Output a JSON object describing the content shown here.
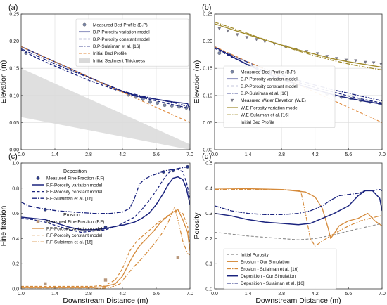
{
  "chart_data": [
    {
      "panel": "(a)",
      "type": "line",
      "ylabel": "Elevation (m)",
      "xlim": [
        0,
        7.0
      ],
      "ylim": [
        0,
        0.25
      ],
      "xticks": [
        0.0,
        1.4,
        2.8,
        4.2,
        5.6,
        7.0
      ],
      "yticks": [
        0.0,
        0.05,
        0.1,
        0.15,
        0.2,
        0.25
      ],
      "grid": true,
      "legend_position": "top-right",
      "legend_groups": [
        {
          "title": "",
          "items": [
            0,
            1,
            2,
            3,
            4,
            5
          ]
        }
      ],
      "series": [
        {
          "name": "Measured Bed Profile (B.P)",
          "style": "marker-circle",
          "color": "#7a86a8",
          "x": [
            0.2,
            4.45,
            4.75,
            5.05,
            5.35,
            5.65,
            5.95,
            6.25,
            6.55,
            6.85
          ],
          "y": [
            0.178,
            0.101,
            0.097,
            0.093,
            0.088,
            0.086,
            0.082,
            0.081,
            0.079,
            0.077
          ]
        },
        {
          "name": "B.P-Porosity variation model",
          "style": "solid",
          "color": "#1a237e",
          "width": 1.5,
          "x": [
            0,
            0.7,
            1.4,
            2.1,
            2.8,
            3.5,
            4.2,
            4.9,
            5.6,
            6.3,
            6.9,
            7.0
          ],
          "y": [
            0.19,
            0.176,
            0.162,
            0.148,
            0.134,
            0.12,
            0.107,
            0.098,
            0.093,
            0.088,
            0.085,
            0.072
          ]
        },
        {
          "name": "B.P-Porosity constant model",
          "style": "dashed",
          "color": "#1a237e",
          "width": 1.3,
          "x": [
            0,
            0.7,
            1.4,
            2.1,
            2.8,
            3.5,
            4.2,
            4.9,
            5.6,
            6.3,
            7.0
          ],
          "y": [
            0.184,
            0.168,
            0.154,
            0.141,
            0.128,
            0.117,
            0.106,
            0.097,
            0.09,
            0.083,
            0.076
          ]
        },
        {
          "name": "B.P-Sulaiman et al. [16]",
          "style": "dashdot",
          "color": "#1a237e",
          "width": 1.3,
          "x": [
            0,
            0.7,
            1.4,
            2.1,
            2.8,
            3.5,
            4.2,
            4.9,
            5.6,
            6.3,
            7.0
          ],
          "y": [
            0.186,
            0.172,
            0.158,
            0.145,
            0.133,
            0.121,
            0.108,
            0.1,
            0.093,
            0.087,
            0.079
          ]
        },
        {
          "name": "Initial Bed Profile",
          "style": "dashed",
          "color": "#e08a3c",
          "width": 1.1,
          "x": [
            0,
            7.0
          ],
          "y": [
            0.19,
            0.05
          ]
        },
        {
          "name": "Initial Sediment Thickness",
          "style": "band",
          "color": "#d9d9d9",
          "x": [
            0,
            7.0
          ],
          "y_upper": [
            0.15,
            0.01
          ],
          "y_lower": [
            0.06,
            0.0
          ]
        }
      ]
    },
    {
      "panel": "(b)",
      "type": "line",
      "ylabel": "Elevation (m)",
      "xlim": [
        0,
        7.0
      ],
      "ylim": [
        0,
        0.25
      ],
      "xticks": [
        0.0,
        1.4,
        2.8,
        4.2,
        5.6,
        7.0
      ],
      "yticks": [
        0.0,
        0.05,
        0.1,
        0.15,
        0.2,
        0.25
      ],
      "grid": true,
      "legend_position": "bottom-left",
      "legend_groups": [
        {
          "title": "",
          "items": [
            0,
            1,
            2,
            3,
            4,
            5,
            6,
            7
          ]
        }
      ],
      "series": [
        {
          "name": "Measured Bed Profile (B.P)",
          "style": "marker-circle",
          "color": "#7a86a8",
          "x": [
            0.2,
            0.6,
            4.7,
            5.0,
            5.3,
            5.7,
            6.1,
            6.5,
            6.9
          ],
          "y": [
            0.178,
            0.176,
            0.103,
            0.1,
            0.097,
            0.094,
            0.091,
            0.088,
            0.085
          ]
        },
        {
          "name": "B.P-Porosity variation model",
          "style": "solid",
          "color": "#1a237e",
          "width": 1.5,
          "x": [
            0,
            0.7,
            1.4,
            2.1,
            2.8,
            3.5,
            4.2,
            4.9,
            5.6,
            6.3,
            7.0
          ],
          "y": [
            0.19,
            0.172,
            0.156,
            0.142,
            0.13,
            0.12,
            0.111,
            0.102,
            0.095,
            0.089,
            0.084
          ]
        },
        {
          "name": "B.P-Porosity constant model",
          "style": "dashed",
          "color": "#1a237e",
          "width": 1.3,
          "x": [
            0,
            0.7,
            1.4,
            2.1,
            2.8,
            3.5,
            4.2,
            4.9,
            5.6,
            6.3,
            7.0
          ],
          "y": [
            0.187,
            0.171,
            0.157,
            0.145,
            0.134,
            0.124,
            0.115,
            0.107,
            0.099,
            0.092,
            0.086
          ]
        },
        {
          "name": "B.P-Sulaiman et al. [16]",
          "style": "dashdot",
          "color": "#1a237e",
          "width": 1.3,
          "x": [
            0,
            0.7,
            1.4,
            2.1,
            2.8,
            3.5,
            4.2,
            4.9,
            5.6,
            6.3,
            7.0
          ],
          "y": [
            0.189,
            0.174,
            0.161,
            0.149,
            0.138,
            0.128,
            0.119,
            0.111,
            0.104,
            0.097,
            0.09
          ]
        },
        {
          "name": "Measured Water Elevation (W.E)",
          "style": "marker-triangle",
          "color": "#7a7a88",
          "x": [
            0.2,
            0.55,
            0.95,
            1.35,
            1.75,
            2.1,
            2.5,
            2.95,
            3.4,
            3.85,
            4.3,
            4.7,
            5.1,
            5.5,
            5.9,
            6.3,
            6.65,
            6.95
          ],
          "y": [
            0.223,
            0.219,
            0.212,
            0.207,
            0.203,
            0.199,
            0.195,
            0.19,
            0.185,
            0.181,
            0.177,
            0.172,
            0.168,
            0.165,
            0.164,
            0.161,
            0.16,
            0.158
          ]
        },
        {
          "name": "W.E-Porosity variation model",
          "style": "solid",
          "color": "#a08a2a",
          "width": 1.4,
          "x": [
            0,
            0.7,
            1.4,
            2.1,
            2.8,
            3.5,
            4.2,
            4.9,
            5.6,
            6.3,
            7.0
          ],
          "y": [
            0.232,
            0.222,
            0.212,
            0.202,
            0.193,
            0.184,
            0.176,
            0.168,
            0.162,
            0.157,
            0.152
          ]
        },
        {
          "name": "W.E-Sulaiman et al. [16]",
          "style": "dashdot",
          "color": "#a08a2a",
          "width": 1.3,
          "x": [
            0,
            0.7,
            1.4,
            2.1,
            2.8,
            3.5,
            4.2,
            4.9,
            5.6,
            6.3,
            7.0
          ],
          "y": [
            0.235,
            0.225,
            0.214,
            0.203,
            0.192,
            0.182,
            0.173,
            0.165,
            0.158,
            0.152,
            0.147
          ]
        },
        {
          "name": "Initial Bed Profile",
          "style": "dashed",
          "color": "#e08a3c",
          "width": 1.1,
          "x": [
            0,
            7.0
          ],
          "y": [
            0.19,
            0.05
          ]
        }
      ]
    },
    {
      "panel": "(c)",
      "type": "line",
      "xlabel": "Downstream Distance (m)",
      "ylabel": "Fine fraction",
      "xlim": [
        0,
        7.0
      ],
      "ylim": [
        0,
        1.0
      ],
      "xticks": [
        0.0,
        1.4,
        2.8,
        4.2,
        5.6,
        7.0
      ],
      "yticks": [
        0.0,
        0.2,
        0.4,
        0.6,
        0.8,
        1.0
      ],
      "grid": false,
      "legend_position": "left",
      "legend_groups": [
        {
          "title": "Deposition",
          "items": [
            0,
            1,
            2,
            3
          ]
        },
        {
          "title": "Erosion",
          "items": [
            4,
            5,
            6,
            7
          ]
        }
      ],
      "series": [
        {
          "name": "Measured Fine Fraction (F.F)",
          "style": "marker-circle",
          "color": "#2a3a8a",
          "x": [
            1.0,
            3.5,
            5.9,
            6.3,
            6.9
          ],
          "y": [
            0.63,
            0.49,
            0.93,
            0.94,
            0.97
          ]
        },
        {
          "name": "F.F-Porosity variation model",
          "style": "solid",
          "color": "#1a237e",
          "width": 1.5,
          "x": [
            0,
            0.5,
            1.0,
            1.5,
            2.0,
            2.5,
            3.0,
            3.5,
            4.0,
            4.3,
            4.7,
            5.0,
            5.3,
            5.6,
            5.9,
            6.1,
            6.3,
            6.5,
            6.7,
            6.85,
            7.0
          ],
          "y": [
            0.57,
            0.56,
            0.55,
            0.52,
            0.49,
            0.47,
            0.47,
            0.48,
            0.5,
            0.51,
            0.53,
            0.56,
            0.6,
            0.67,
            0.76,
            0.83,
            0.88,
            0.89,
            0.87,
            0.8,
            0.67
          ]
        },
        {
          "name": "F.F-Porosity constant model",
          "style": "dashed",
          "color": "#1a237e",
          "width": 1.3,
          "x": [
            0,
            0.5,
            1.0,
            1.5,
            2.0,
            2.5,
            3.0,
            3.5,
            4.0,
            4.3,
            4.7,
            5.0,
            5.3,
            5.6,
            5.9,
            6.1,
            6.3,
            6.5,
            6.7,
            6.85,
            7.0
          ],
          "y": [
            0.56,
            0.55,
            0.53,
            0.5,
            0.47,
            0.45,
            0.46,
            0.47,
            0.5,
            0.53,
            0.57,
            0.63,
            0.7,
            0.78,
            0.87,
            0.92,
            0.95,
            0.95,
            0.93,
            0.85,
            0.72
          ]
        },
        {
          "name": "F.F-Sulaiman et al. [16]",
          "style": "dashdot",
          "color": "#1a237e",
          "width": 1.3,
          "x": [
            0,
            0.3,
            0.8,
            1.5,
            2.2,
            3.0,
            3.7,
            4.2,
            4.5,
            4.7,
            4.9,
            5.1,
            5.4,
            5.7,
            6.0,
            6.3,
            6.6,
            6.9,
            7.0
          ],
          "y": [
            0.69,
            0.66,
            0.64,
            0.62,
            0.61,
            0.6,
            0.6,
            0.61,
            0.64,
            0.72,
            0.83,
            0.87,
            0.9,
            0.92,
            0.94,
            0.95,
            0.96,
            0.97,
            0.97
          ]
        },
        {
          "name": "Measured Fine Fraction (F.F)",
          "style": "marker-square",
          "color": "#b8977a",
          "x": [
            1.0,
            3.5,
            6.5
          ],
          "y": [
            0.04,
            0.07,
            0.25
          ]
        },
        {
          "name": "F.F-Porosity variation model",
          "style": "solid",
          "color": "#d58a3a",
          "width": 1.3,
          "x": [
            0,
            1.0,
            2.0,
            3.0,
            3.5,
            3.9,
            4.2,
            4.6,
            4.9,
            5.2,
            5.5,
            5.7,
            5.9,
            6.1,
            6.3,
            6.5,
            6.7,
            6.9,
            7.0
          ],
          "y": [
            0.01,
            0.01,
            0.01,
            0.01,
            0.02,
            0.04,
            0.1,
            0.25,
            0.34,
            0.4,
            0.46,
            0.51,
            0.55,
            0.58,
            0.61,
            0.63,
            0.55,
            0.45,
            0.3
          ]
        },
        {
          "name": "F.F-Porosity constant model",
          "style": "dashed",
          "color": "#d58a3a",
          "width": 1.2,
          "x": [
            0,
            1.0,
            2.0,
            3.0,
            3.5,
            3.9,
            4.2,
            4.5,
            4.8,
            5.1,
            5.4,
            5.7,
            6.0,
            6.3,
            6.5,
            6.7,
            6.9,
            7.0
          ],
          "y": [
            0.02,
            0.02,
            0.02,
            0.02,
            0.03,
            0.07,
            0.16,
            0.3,
            0.38,
            0.43,
            0.48,
            0.53,
            0.57,
            0.61,
            0.62,
            0.6,
            0.5,
            0.35
          ]
        },
        {
          "name": "F.F-Sulaiman et al. [16]",
          "style": "dashdot",
          "color": "#d58a3a",
          "width": 1.2,
          "x": [
            0,
            1.0,
            2.0,
            3.0,
            3.7,
            4.1,
            4.3,
            4.6,
            5.0,
            5.4,
            5.8,
            6.1,
            6.35,
            6.5,
            6.7,
            6.9,
            7.0
          ],
          "y": [
            0.0,
            0.0,
            0.0,
            0.0,
            0.01,
            0.04,
            0.09,
            0.16,
            0.24,
            0.33,
            0.43,
            0.53,
            0.65,
            0.55,
            0.38,
            0.28,
            0.27
          ]
        }
      ]
    },
    {
      "panel": "(d)",
      "type": "line",
      "xlabel": "Downstream Distance (m)",
      "ylabel": "Porosity",
      "xlim": [
        0,
        7.0
      ],
      "ylim": [
        0,
        0.5
      ],
      "xticks": [
        0.0,
        1.4,
        2.8,
        4.2,
        5.6,
        7.0
      ],
      "yticks": [
        0.0,
        0.1,
        0.2,
        0.3,
        0.4,
        0.5
      ],
      "grid": false,
      "legend_position": "bottom-left",
      "legend_groups": [
        {
          "title": "",
          "items": [
            0,
            1,
            2,
            3,
            4
          ]
        }
      ],
      "series": [
        {
          "name": "Initial Porosity",
          "style": "dashed",
          "color": "#888888",
          "width": 1.1,
          "x": [
            0,
            1.4,
            2.8,
            3.5,
            4.2,
            5.0,
            5.6,
            6.3,
            7.0
          ],
          "y": [
            0.225,
            0.21,
            0.2,
            0.195,
            0.2,
            0.215,
            0.23,
            0.245,
            0.26
          ]
        },
        {
          "name": "Erosion - Our Simulation",
          "style": "solid",
          "color": "#d58a3a",
          "width": 1.3,
          "x": [
            0,
            1.4,
            2.8,
            3.8,
            4.2,
            4.5,
            4.75,
            4.85,
            5.0,
            5.2,
            5.6,
            6.0,
            6.4,
            6.7,
            7.0
          ],
          "y": [
            0.4,
            0.398,
            0.395,
            0.385,
            0.365,
            0.32,
            0.24,
            0.2,
            0.22,
            0.25,
            0.27,
            0.28,
            0.3,
            0.27,
            0.25
          ]
        },
        {
          "name": "Erosion - Sulaiman et al. [16]",
          "style": "dashdot",
          "color": "#d58a3a",
          "width": 1.2,
          "x": [
            0,
            1.4,
            2.8,
            3.6,
            3.8,
            4.0,
            4.2,
            4.5,
            5.0,
            5.6,
            6.1,
            6.5,
            6.9,
            7.0
          ],
          "y": [
            0.395,
            0.395,
            0.395,
            0.39,
            0.3,
            0.2,
            0.17,
            0.19,
            0.22,
            0.25,
            0.27,
            0.28,
            0.29,
            0.29
          ]
        },
        {
          "name": "Deposition - Our Simulation",
          "style": "solid",
          "color": "#1a237e",
          "width": 1.5,
          "x": [
            0,
            0.7,
            1.4,
            2.1,
            2.8,
            3.5,
            4.0,
            4.5,
            5.0,
            5.6,
            6.0,
            6.3,
            6.6,
            6.9,
            7.0
          ],
          "y": [
            0.3,
            0.29,
            0.275,
            0.265,
            0.26,
            0.255,
            0.26,
            0.28,
            0.3,
            0.33,
            0.37,
            0.39,
            0.39,
            0.36,
            0.31
          ]
        },
        {
          "name": "Deposition - Sulaiman et al. [16]",
          "style": "dashdot",
          "color": "#1a237e",
          "width": 1.3,
          "x": [
            0,
            0.7,
            1.4,
            2.1,
            2.8,
            3.5,
            4.0,
            4.5,
            4.9,
            5.2,
            5.6,
            6.0,
            6.3,
            6.6,
            6.9,
            7.0
          ],
          "y": [
            0.33,
            0.31,
            0.3,
            0.295,
            0.295,
            0.3,
            0.31,
            0.33,
            0.355,
            0.37,
            0.375,
            0.38,
            0.39,
            0.39,
            0.395,
            0.39
          ]
        }
      ]
    }
  ]
}
